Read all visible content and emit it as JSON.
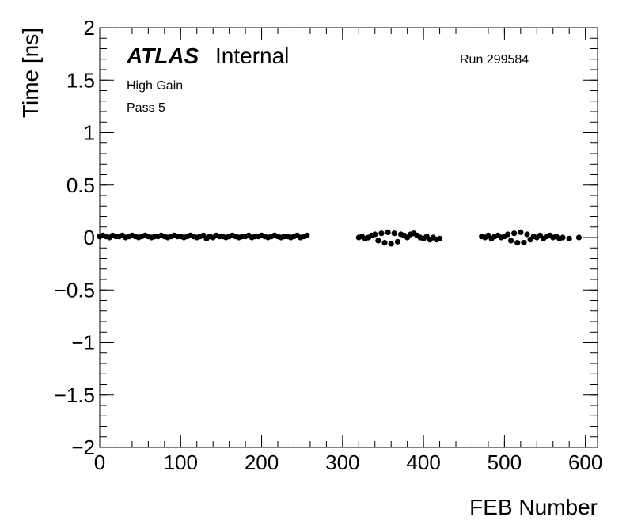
{
  "chart_data": {
    "type": "scatter",
    "experiment": "ATLAS",
    "status": "Internal",
    "run": "Run 299584",
    "notes": [
      "High Gain",
      "Pass 5"
    ],
    "xlabel": "FEB Number",
    "ylabel": "Time [ns]",
    "color": "#000000",
    "xlim": [
      0,
      615
    ],
    "ylim": [
      -2,
      2
    ],
    "xticks": [
      0,
      100,
      200,
      300,
      400,
      500,
      600
    ],
    "yticks": [
      {
        "value": -2,
        "label": "−2"
      },
      {
        "value": -1.5,
        "label": "−1.5"
      },
      {
        "value": -1,
        "label": "−1"
      },
      {
        "value": -0.5,
        "label": "−0.5"
      },
      0,
      0.5,
      1,
      1.5,
      2
    ],
    "x": [
      0,
      4,
      8,
      12,
      16,
      20,
      24,
      28,
      32,
      36,
      40,
      44,
      48,
      52,
      56,
      60,
      64,
      68,
      72,
      76,
      80,
      84,
      88,
      92,
      96,
      100,
      104,
      108,
      112,
      116,
      120,
      124,
      128,
      132,
      136,
      140,
      144,
      148,
      152,
      156,
      160,
      164,
      168,
      172,
      176,
      180,
      184,
      188,
      192,
      196,
      200,
      204,
      208,
      212,
      216,
      220,
      224,
      228,
      232,
      236,
      240,
      244,
      248,
      252,
      256,
      320,
      324,
      328,
      332,
      336,
      340,
      344,
      348,
      352,
      356,
      360,
      364,
      368,
      372,
      376,
      380,
      384,
      388,
      392,
      396,
      400,
      404,
      408,
      412,
      416,
      420,
      472,
      476,
      480,
      484,
      488,
      492,
      496,
      500,
      504,
      508,
      512,
      516,
      520,
      524,
      528,
      532,
      536,
      540,
      544,
      548,
      552,
      556,
      560,
      564,
      568,
      572,
      580,
      592
    ],
    "values": [
      0.01,
      0.02,
      0.01,
      0.0,
      0.02,
      0.01,
      0.01,
      0.02,
      0.0,
      0.01,
      0.02,
      0.01,
      0.0,
      0.01,
      0.02,
      0.01,
      0.0,
      0.01,
      0.01,
      0.02,
      0.01,
      0.0,
      0.01,
      0.02,
      0.01,
      0.01,
      0.0,
      0.01,
      0.02,
      0.01,
      0.0,
      0.01,
      0.02,
      -0.01,
      0.01,
      0.0,
      0.02,
      0.01,
      0.01,
      0.0,
      0.01,
      0.02,
      0.01,
      0.0,
      0.01,
      0.01,
      0.02,
      0.0,
      0.01,
      0.01,
      0.02,
      0.01,
      0.0,
      0.01,
      0.02,
      0.01,
      0.0,
      0.01,
      0.01,
      0.0,
      0.01,
      0.02,
      0.0,
      0.01,
      0.02,
      0.0,
      0.01,
      -0.01,
      0.0,
      0.02,
      0.03,
      -0.03,
      0.04,
      -0.05,
      0.05,
      -0.06,
      0.04,
      -0.04,
      0.03,
      0.02,
      0.0,
      0.03,
      0.04,
      0.02,
      0.0,
      -0.01,
      0.01,
      -0.02,
      0.0,
      -0.02,
      -0.01,
      0.01,
      0.0,
      0.02,
      -0.01,
      0.01,
      0.02,
      0.0,
      0.01,
      0.03,
      -0.03,
      0.04,
      -0.05,
      0.05,
      -0.05,
      0.03,
      -0.02,
      0.01,
      0.0,
      0.02,
      -0.01,
      0.01,
      0.02,
      0.0,
      0.01,
      -0.01,
      0.0,
      -0.01,
      0.0
    ]
  }
}
